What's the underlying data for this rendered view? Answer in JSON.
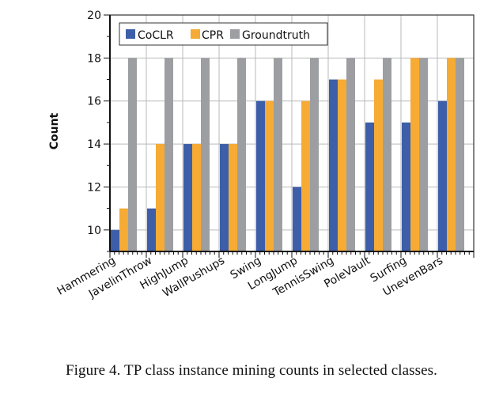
{
  "chart_data": {
    "type": "bar",
    "title": "",
    "xlabel": "",
    "ylabel": "Count",
    "ylim": [
      9,
      20
    ],
    "yticks": [
      10,
      12,
      14,
      16,
      18,
      20
    ],
    "grid": true,
    "legend_position": "top-left",
    "categories": [
      "Hammering",
      "JavelinThrow",
      "HighJump",
      "WallPushups",
      "Swing",
      "LongJump",
      "TennisSwing",
      "PoleVault",
      "Surfing",
      "UnevenBars"
    ],
    "series": [
      {
        "name": "CoCLR",
        "color": "#3d5ea8",
        "values": [
          10,
          11,
          14,
          14,
          16,
          12,
          17,
          15,
          15,
          16
        ]
      },
      {
        "name": "CPR",
        "color": "#f6ab34",
        "values": [
          11,
          14,
          14,
          14,
          16,
          16,
          17,
          17,
          18,
          18
        ]
      },
      {
        "name": "Groundtruth",
        "color": "#9d9ea2",
        "values": [
          18,
          18,
          18,
          18,
          18,
          18,
          18,
          18,
          18,
          18
        ]
      }
    ]
  },
  "caption": "Figure 4. TP class instance mining counts in selected classes."
}
